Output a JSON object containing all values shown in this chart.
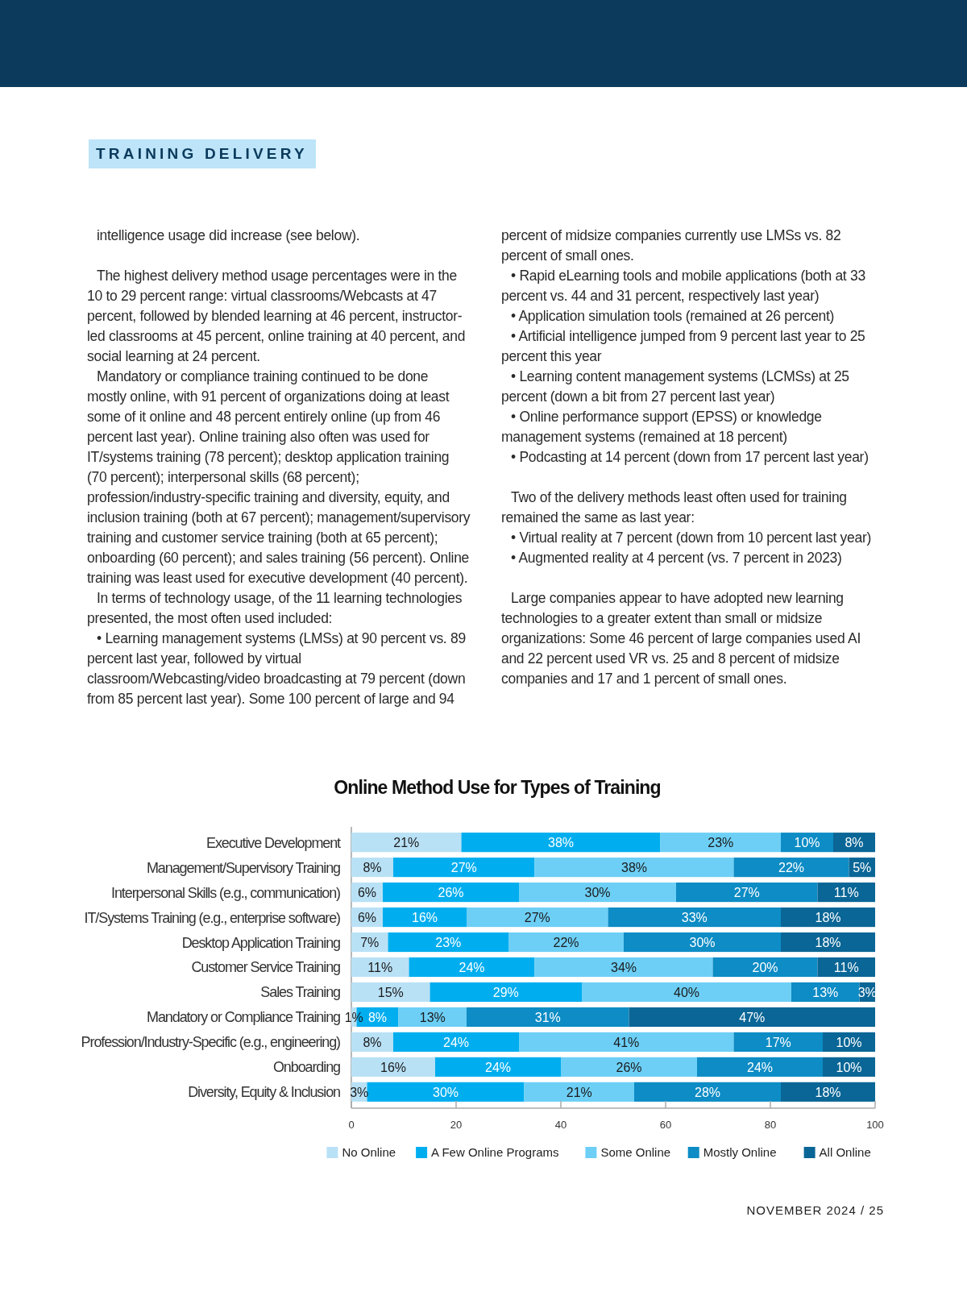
{
  "chart_data": {
    "type": "bar",
    "orientation": "horizontal",
    "stacked": true,
    "title": "Online Method Use for Types of Training",
    "categories": [
      "Executive Development",
      "Management/Supervisory Training",
      "Interpersonal Skills (e.g., communication)",
      "IT/Systems Training (e.g., enterprise software)",
      "Desktop Application Training",
      "Customer Service Training",
      "Sales Training",
      "Mandatory or Compliance Training",
      "Profession/Industry-Specific (e.g., engineering)",
      "Onboarding",
      "Diversity, Equity & Inclusion"
    ],
    "series": [
      {
        "name": "No Online",
        "color": "#b9e1f6",
        "values": [
          21,
          8,
          6,
          6,
          7,
          11,
          15,
          1,
          8,
          16,
          3
        ],
        "value_labels": [
          "21%",
          "8%",
          "6%",
          "6%",
          "7%",
          "11%",
          "15%",
          "1%",
          "8%",
          "16%",
          "3%"
        ]
      },
      {
        "name": "A Few Online Programs",
        "color": "#00aeef",
        "values": [
          38,
          27,
          26,
          16,
          23,
          24,
          29,
          8,
          24,
          24,
          30
        ],
        "value_labels": [
          "38%",
          "27%",
          "26%",
          "16%",
          "23%",
          "24%",
          "29%",
          "8%",
          "24%",
          "24%",
          "30%"
        ]
      },
      {
        "name": "Some Online",
        "color": "#6dcff6",
        "values": [
          23,
          38,
          30,
          27,
          22,
          34,
          40,
          13,
          41,
          26,
          21
        ],
        "value_labels": [
          "23%",
          "38%",
          "30%",
          "27%",
          "22%",
          "34%",
          "40%",
          "13%",
          "41%",
          "26%",
          "21%"
        ]
      },
      {
        "name": "Mostly Online",
        "color": "#0d8cc5",
        "values": [
          10,
          22,
          27,
          33,
          30,
          20,
          13,
          31,
          17,
          24,
          28
        ],
        "value_labels": [
          "10%",
          "22%",
          "27%",
          "33%",
          "30%",
          "20%",
          "13%",
          "31%",
          "17%",
          "24%",
          "28%"
        ]
      },
      {
        "name": "All Online",
        "color": "#0a6696",
        "values": [
          8,
          5,
          11,
          18,
          18,
          11,
          3,
          47,
          10,
          10,
          18
        ],
        "value_labels": [
          "8%",
          "5%",
          "11%",
          "18%",
          "18%",
          "11%",
          "3%",
          "47%",
          "10%",
          "10%",
          "18%"
        ]
      }
    ],
    "xlim": [
      0,
      100
    ],
    "xticks": [
      0,
      20,
      40,
      60,
      80,
      100
    ],
    "grid": false,
    "legend": "bottom",
    "annotations": [
      "TRAINING DELIVERY",
      "intelligence usage did increase (see below).",
      "The highest delivery method usage percentages were in the 10 to 29 percent range: virtual classrooms/Webcasts at 47 percent, followed by blended learning at 46 percent, instructor-led classrooms at 45 percent, online training at 40 percent, and social learning at 24 percent.",
      "Mandatory or compliance training continued to be done mostly online, with 91 percent of organizations doing at least some of it online and 48 percent entirely online (up from 46 percent last year). Online training also often was used for  IT/systems training (78 percent); desktop application training (70 percent); interpersonal skills (68 percent); profession/industry-specific training and diversity, equity, and inclusion training (both at 67 percent); management/supervisory training and customer service training (both at 65 percent); onboarding (60 percent);  and sales training (56 percent). Online training was least used for executive development (40 percent).",
      "In terms of technology usage, of the 11 learning technologies presented, the most often used included:",
      "• Learning management systems (LMSs) at 90 percent vs. 89 percent last year, followed by virtual classroom/Webcasting/video broadcasting at 79 percent (down from 85 percent last year). Some 100 percent of large and 94 percent of midsize companies currently use LMSs vs. 82 percent of small ones.",
      "• Rapid eLearning tools and mobile applications (both at 33 percent vs. 44 and 31 percent, respectively last year)",
      "• Application simulation tools (remained at 26 percent)",
      "• Artificial intelligence jumped from 9 percent last year to 25 percent this year",
      "• Learning content management systems (LCMSs) at 25 percent (down a bit from 27 percent last year)",
      "• Online performance support (EPSS) or knowledge management systems (remained at 18 percent)",
      "• Podcasting at 14 percent (down from 17 percent last year)",
      "Two of the delivery methods least often used for training remained the same as last year:",
      "• Virtual reality at 7 percent (down from 10 percent last year)",
      "• Augmented reality at 4 percent (vs. 7 percent in 2023)",
      "Large companies appear to have adopted new learning technologies to a greater extent than small or midsize organizations: Some 46 percent of large companies used AI and 22 percent used VR vs. 25 and 8 percent of midsize companies and 17 and 1 percent of small ones.",
      "NOVEMBER 2024 / 25"
    ]
  }
}
